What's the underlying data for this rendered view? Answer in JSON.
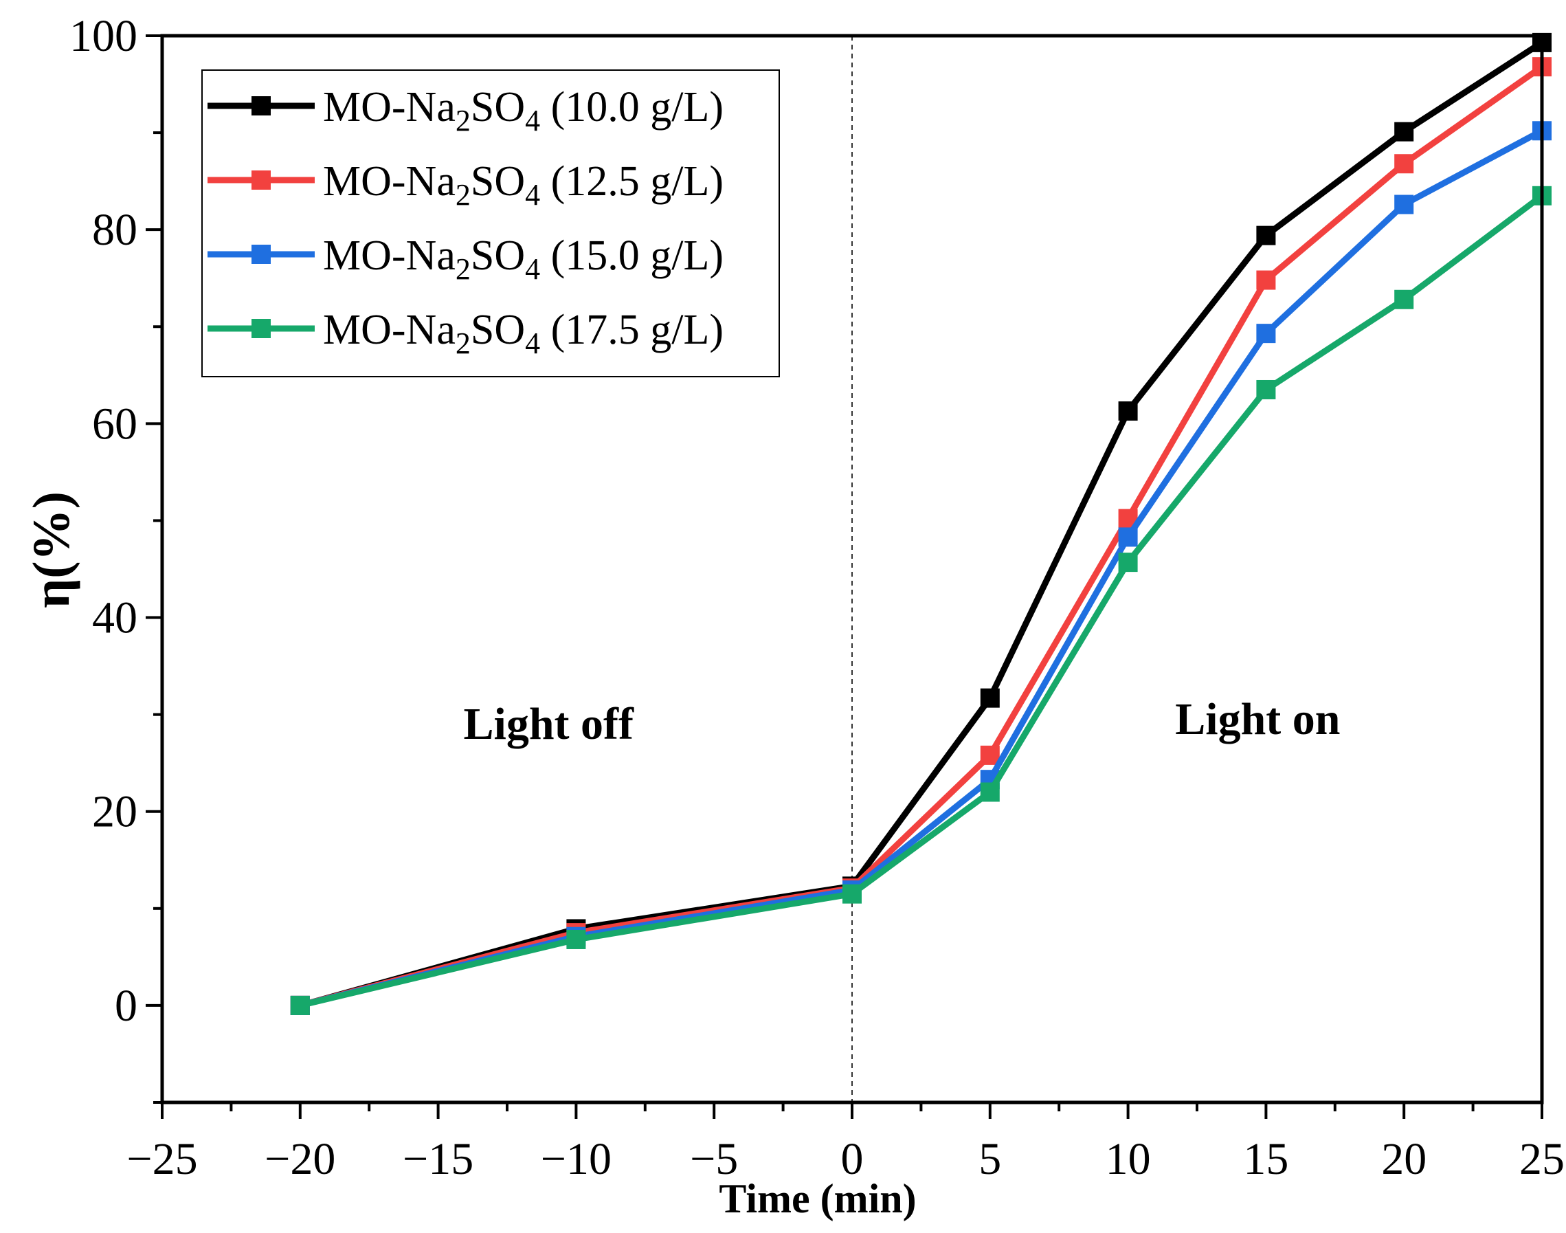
{
  "chart_data": {
    "type": "line",
    "title": "",
    "xlabel": "Time (min)",
    "ylabel": "η(%)",
    "xlim": [
      -25,
      25
    ],
    "ylim": [
      -10,
      100
    ],
    "x_ticks": [
      "−25",
      "−20",
      "−15",
      "−10",
      "−5",
      "0",
      "5",
      "10",
      "15",
      "20",
      "25"
    ],
    "y_ticks": [
      "0",
      "20",
      "40",
      "60",
      "80",
      "100"
    ],
    "x": [
      -20,
      -10,
      0,
      5,
      10,
      15,
      20,
      25
    ],
    "series": [
      {
        "name": "MO-Na2SO4  (10.0 g/L)",
        "name_parts": [
          "MO-Na",
          "2",
          "SO",
          "4",
          "  (10.0 g/L)"
        ],
        "color": "#000000",
        "values": [
          0,
          7.9,
          12.3,
          31.7,
          61.3,
          79.4,
          90.1,
          99.3
        ]
      },
      {
        "name": "MO-Na2SO4  (12.5 g/L)",
        "name_parts": [
          "MO-Na",
          "2",
          "SO",
          "4",
          "  (12.5 g/L)"
        ],
        "color": "#f2413f",
        "values": [
          0,
          7.5,
          12.1,
          25.8,
          50.2,
          74.8,
          86.8,
          96.8
        ]
      },
      {
        "name": "MO-Na2SO4  (15.0 g/L)",
        "name_parts": [
          "MO-Na",
          "2",
          "SO",
          "4",
          "  (15.0 g/L)"
        ],
        "color": "#1f6fe0",
        "values": [
          0,
          7.1,
          11.9,
          23.3,
          48.3,
          69.3,
          82.6,
          90.2
        ]
      },
      {
        "name": "MO-Na2SO4  (17.5 g/L)",
        "name_parts": [
          "MO-Na",
          "2",
          "SO",
          "4",
          "  (17.5 g/L)"
        ],
        "color": "#16a86a",
        "values": [
          0,
          6.8,
          11.5,
          22.0,
          45.7,
          63.5,
          72.8,
          83.5
        ]
      }
    ],
    "annotations": [
      {
        "text": "Light off",
        "x": -11,
        "y": 27.5
      },
      {
        "text": "Light on",
        "x": 14.7,
        "y": 28
      }
    ],
    "reference_line": {
      "x": 0,
      "style": "dashed"
    },
    "legend_position": "top-left",
    "grid": false
  }
}
